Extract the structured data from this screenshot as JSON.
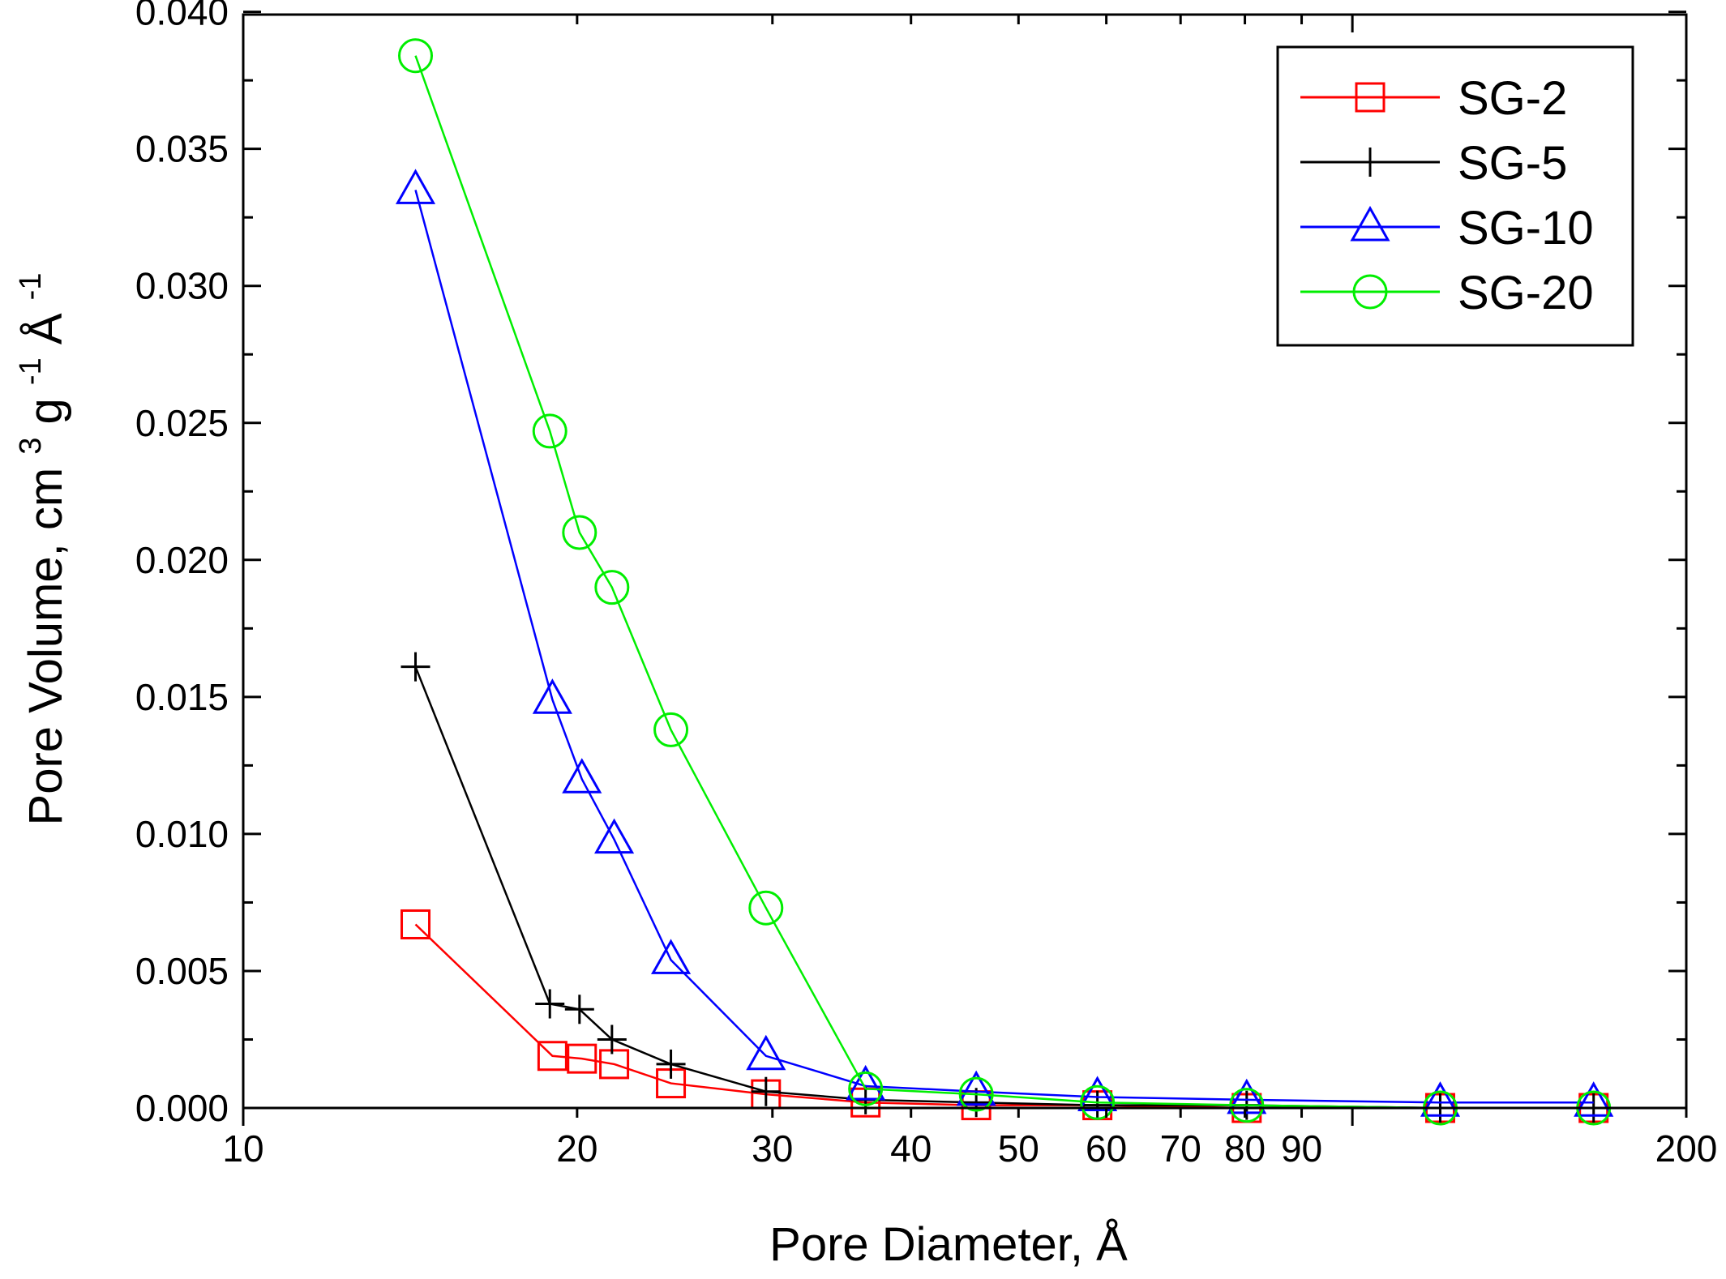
{
  "chart_data": {
    "type": "line",
    "title": "",
    "xlabel": "Pore Diameter, Å",
    "ylabel": "Pore Volume, cm",
    "ylabel_parts": {
      "sup1": "3",
      "middle": "g",
      "sup2": "-1",
      "unit": "Å",
      "sup3": "-1"
    },
    "xscale": "log",
    "xlim": [
      10,
      200
    ],
    "ylim": [
      0,
      0.0399
    ],
    "x_ticks": [
      {
        "value": 10,
        "label": "10"
      },
      {
        "value": 20,
        "label": "20"
      },
      {
        "value": 30,
        "label": "30"
      },
      {
        "value": 40,
        "label": "40"
      },
      {
        "value": 50,
        "label": "50"
      },
      {
        "value": 60,
        "label": "60"
      },
      {
        "value": 70,
        "label": "70"
      },
      {
        "value": 80,
        "label": "80"
      },
      {
        "value": 90,
        "label": "90"
      },
      {
        "value": 200,
        "label": "200"
      }
    ],
    "x_major_tick_values": [
      10,
      100
    ],
    "y_ticks": [
      {
        "value": 0.0,
        "label": "0.000"
      },
      {
        "value": 0.005,
        "label": "0.005"
      },
      {
        "value": 0.01,
        "label": "0.010"
      },
      {
        "value": 0.015,
        "label": "0.015"
      },
      {
        "value": 0.02,
        "label": "0.020"
      },
      {
        "value": 0.025,
        "label": "0.025"
      },
      {
        "value": 0.03,
        "label": "0.030"
      },
      {
        "value": 0.035,
        "label": "0.035"
      },
      {
        "value": 0.04,
        "label": "0.040"
      }
    ],
    "y_minor_step": 0.0025,
    "legend_position": "top-right",
    "series": [
      {
        "name": "SG-2",
        "color": "#ff0000",
        "marker": "square",
        "x": [
          14.3,
          19.0,
          20.2,
          21.6,
          24.3,
          29.6,
          36.4,
          45.8,
          58.9,
          80.3,
          120.0,
          165.0
        ],
        "y": [
          0.0067,
          0.0019,
          0.0018,
          0.0016,
          0.0009,
          0.0005,
          0.0002,
          0.0001,
          0.0001,
          0.0,
          0.0,
          0.0
        ]
      },
      {
        "name": "SG-5",
        "color": "#000000",
        "marker": "plus",
        "x": [
          14.3,
          18.9,
          20.1,
          21.5,
          24.3,
          29.6,
          36.4,
          45.8,
          58.9,
          80.3,
          120.0,
          165.0
        ],
        "y": [
          0.0161,
          0.0038,
          0.0036,
          0.0025,
          0.0016,
          0.0006,
          0.0003,
          0.0002,
          0.0001,
          0.0001,
          0.0,
          0.0
        ]
      },
      {
        "name": "SG-10",
        "color": "#0000ff",
        "marker": "triangle",
        "x": [
          14.3,
          19.0,
          20.2,
          21.6,
          24.3,
          29.6,
          36.4,
          45.8,
          58.9,
          80.3,
          120.0,
          165.0
        ],
        "y": [
          0.0335,
          0.0149,
          0.012,
          0.0098,
          0.0054,
          0.0019,
          0.0008,
          0.0006,
          0.0004,
          0.0003,
          0.0002,
          0.0002
        ]
      },
      {
        "name": "SG-20",
        "color": "#00ee00",
        "marker": "circle",
        "x": [
          14.3,
          18.9,
          20.1,
          21.5,
          24.3,
          29.6,
          36.4,
          45.8,
          58.9,
          80.3,
          120.0,
          165.0
        ],
        "y": [
          0.0384,
          0.0247,
          0.021,
          0.019,
          0.0138,
          0.0073,
          0.0007,
          0.0005,
          0.0002,
          0.0001,
          0.0,
          0.0
        ]
      }
    ]
  }
}
